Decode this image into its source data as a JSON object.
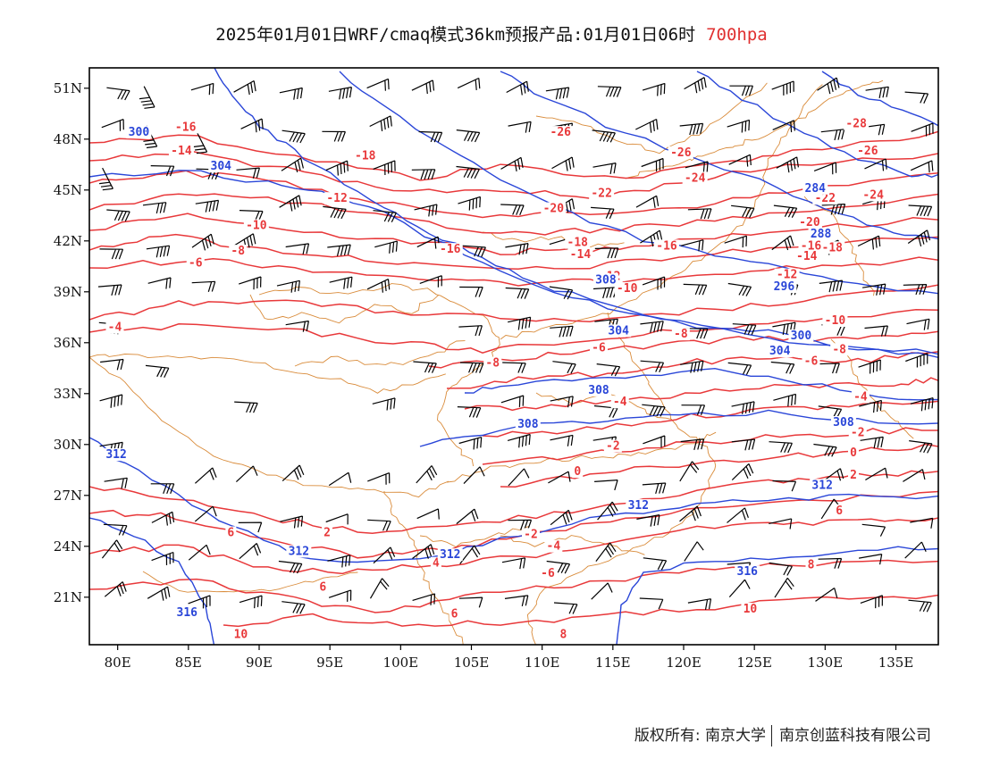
{
  "title": {
    "main": "2025年01月01日WRF/cmaq模式36km预报产品:01月01日06时",
    "level": "700hpa"
  },
  "colors": {
    "temperature": "#e8383a",
    "height": "#2a46d8",
    "borders": "#d98b3a",
    "wind": "#000000",
    "frame": "#000000"
  },
  "axes": {
    "lon_range": [
      78,
      138
    ],
    "lat_range": [
      18.2,
      52.2
    ],
    "lon_ticks": [
      80,
      85,
      90,
      95,
      100,
      105,
      110,
      115,
      120,
      125,
      130,
      135
    ],
    "lon_labels": [
      "80E",
      "85E",
      "90E",
      "95E",
      "100E",
      "105E",
      "110E",
      "115E",
      "120E",
      "125E",
      "130E",
      "135E"
    ],
    "lat_ticks": [
      21,
      24,
      27,
      30,
      33,
      36,
      39,
      42,
      45,
      48,
      51
    ],
    "lat_labels": [
      "21N",
      "24N",
      "27N",
      "30N",
      "33N",
      "36N",
      "39N",
      "42N",
      "45N",
      "48N",
      "51N"
    ]
  },
  "temperature_labels": [
    {
      "text": "-16",
      "lon": 84.8,
      "lat": 48.6
    },
    {
      "text": "-14",
      "lon": 84.5,
      "lat": 47.2
    },
    {
      "text": "-18",
      "lon": 97.5,
      "lat": 46.9
    },
    {
      "text": "-12",
      "lon": 95.5,
      "lat": 44.4
    },
    {
      "text": "-10",
      "lon": 89.8,
      "lat": 42.8
    },
    {
      "text": "-8",
      "lon": 88.5,
      "lat": 41.3
    },
    {
      "text": "-6",
      "lon": 85.5,
      "lat": 40.6
    },
    {
      "text": "-4",
      "lon": 79.8,
      "lat": 36.8
    },
    {
      "text": "-16",
      "lon": 103.5,
      "lat": 41.4
    },
    {
      "text": "-26",
      "lon": 111.3,
      "lat": 48.3
    },
    {
      "text": "-26",
      "lon": 119.8,
      "lat": 47.1
    },
    {
      "text": "-24",
      "lon": 120.8,
      "lat": 45.6
    },
    {
      "text": "-22",
      "lon": 114.2,
      "lat": 44.7
    },
    {
      "text": "-20",
      "lon": 110.8,
      "lat": 43.8
    },
    {
      "text": "-16",
      "lon": 118.8,
      "lat": 41.6
    },
    {
      "text": "-18",
      "lon": 112.5,
      "lat": 41.8
    },
    {
      "text": "-14",
      "lon": 112.7,
      "lat": 41.1
    },
    {
      "text": "-12",
      "lon": 114.8,
      "lat": 39.8
    },
    {
      "text": "-10",
      "lon": 116.0,
      "lat": 39.1
    },
    {
      "text": "-8",
      "lon": 119.8,
      "lat": 36.4
    },
    {
      "text": "-6",
      "lon": 114.0,
      "lat": 35.6
    },
    {
      "text": "-8",
      "lon": 106.5,
      "lat": 34.7
    },
    {
      "text": "-4",
      "lon": 115.5,
      "lat": 32.4
    },
    {
      "text": "-2",
      "lon": 115.0,
      "lat": 29.8
    },
    {
      "text": "0",
      "lon": 112.5,
      "lat": 28.3
    },
    {
      "text": "-2",
      "lon": 109.2,
      "lat": 24.6
    },
    {
      "text": "-4",
      "lon": 110.8,
      "lat": 23.9
    },
    {
      "text": "-6",
      "lon": 110.4,
      "lat": 22.3
    },
    {
      "text": "-28",
      "lon": 132.2,
      "lat": 48.8
    },
    {
      "text": "-26",
      "lon": 133.0,
      "lat": 47.2
    },
    {
      "text": "-24",
      "lon": 133.4,
      "lat": 44.6
    },
    {
      "text": "-22",
      "lon": 130.0,
      "lat": 44.4
    },
    {
      "text": "-20",
      "lon": 128.9,
      "lat": 43.0
    },
    {
      "text": "-18",
      "lon": 130.5,
      "lat": 41.5
    },
    {
      "text": "-16",
      "lon": 129.0,
      "lat": 41.6
    },
    {
      "text": "-14",
      "lon": 128.7,
      "lat": 41.0
    },
    {
      "text": "-12",
      "lon": 127.3,
      "lat": 39.9
    },
    {
      "text": "-10",
      "lon": 130.7,
      "lat": 37.2
    },
    {
      "text": "-8",
      "lon": 131.0,
      "lat": 35.5
    },
    {
      "text": "-6",
      "lon": 129.0,
      "lat": 34.8
    },
    {
      "text": "-4",
      "lon": 132.5,
      "lat": 32.7
    },
    {
      "text": "-2",
      "lon": 132.3,
      "lat": 30.6
    },
    {
      "text": "0",
      "lon": 132.0,
      "lat": 29.4
    },
    {
      "text": "2",
      "lon": 132.0,
      "lat": 28.1
    },
    {
      "text": "6",
      "lon": 131.0,
      "lat": 26.0
    },
    {
      "text": "8",
      "lon": 129.0,
      "lat": 22.8
    },
    {
      "text": "10",
      "lon": 124.7,
      "lat": 20.2
    },
    {
      "text": "6",
      "lon": 88.0,
      "lat": 24.7
    },
    {
      "text": "2",
      "lon": 94.8,
      "lat": 24.7
    },
    {
      "text": "4",
      "lon": 102.5,
      "lat": 22.9
    },
    {
      "text": "6",
      "lon": 94.5,
      "lat": 21.5
    },
    {
      "text": "6",
      "lon": 103.8,
      "lat": 19.9
    },
    {
      "text": "10",
      "lon": 88.7,
      "lat": 18.7
    },
    {
      "text": "8",
      "lon": 111.5,
      "lat": 18.7
    }
  ],
  "height_labels": [
    {
      "text": "300",
      "lon": 81.5,
      "lat": 48.3
    },
    {
      "text": "304",
      "lon": 87.3,
      "lat": 46.3
    },
    {
      "text": "308",
      "lon": 114.5,
      "lat": 39.6
    },
    {
      "text": "304",
      "lon": 115.4,
      "lat": 36.6
    },
    {
      "text": "308",
      "lon": 114.0,
      "lat": 33.1
    },
    {
      "text": "308",
      "lon": 109.0,
      "lat": 31.1
    },
    {
      "text": "312",
      "lon": 116.8,
      "lat": 26.3
    },
    {
      "text": "312",
      "lon": 103.5,
      "lat": 23.4
    },
    {
      "text": "312",
      "lon": 92.8,
      "lat": 23.6
    },
    {
      "text": "312",
      "lon": 79.9,
      "lat": 29.3
    },
    {
      "text": "316",
      "lon": 84.9,
      "lat": 20.0
    },
    {
      "text": "316",
      "lon": 124.5,
      "lat": 22.4
    },
    {
      "text": "284",
      "lon": 129.3,
      "lat": 45.0
    },
    {
      "text": "288",
      "lon": 129.7,
      "lat": 42.3
    },
    {
      "text": "296",
      "lon": 127.1,
      "lat": 39.2
    },
    {
      "text": "300",
      "lon": 128.3,
      "lat": 36.3
    },
    {
      "text": "304",
      "lon": 126.8,
      "lat": 35.4
    },
    {
      "text": "308",
      "lon": 131.3,
      "lat": 31.2
    },
    {
      "text": "312",
      "lon": 129.8,
      "lat": 27.5
    }
  ],
  "copyright": {
    "left": "版权所有: 南京大学",
    "right": "南京创蓝科技有限公司"
  }
}
